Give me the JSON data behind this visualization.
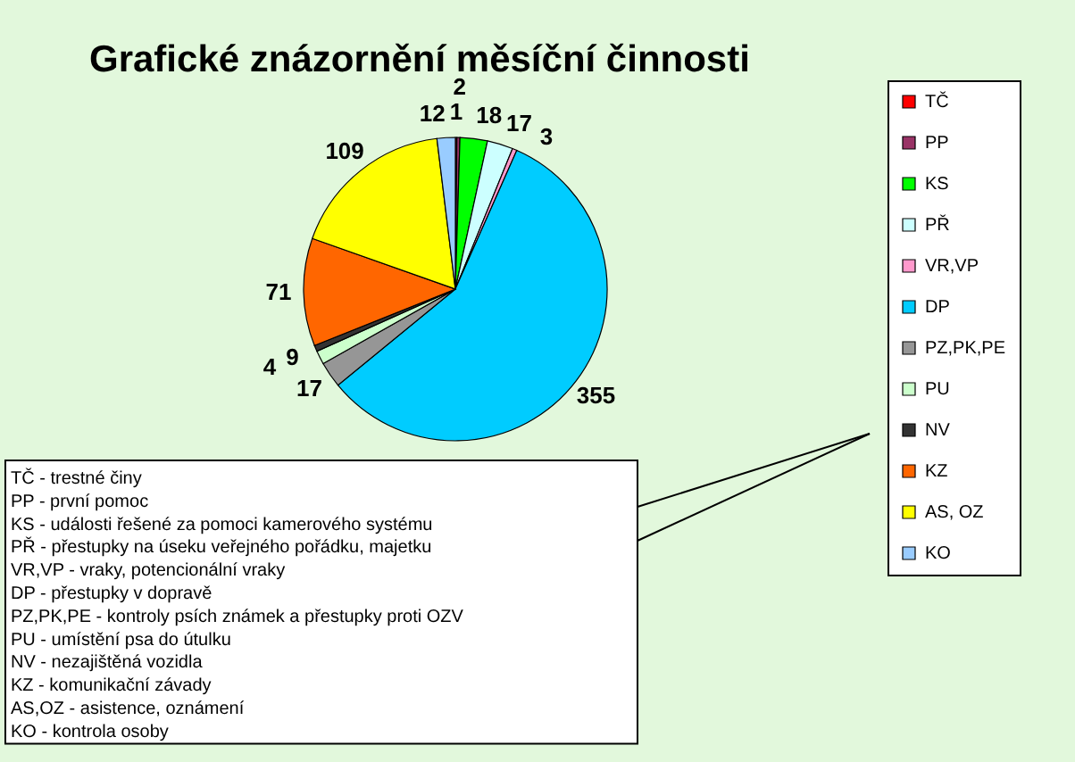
{
  "chart_data": {
    "type": "pie",
    "title": "Grafické znázornění měsíční činnosti",
    "categories": [
      "TČ",
      "PP",
      "KS",
      "PŘ",
      "VR,VP",
      "DP",
      "PZ,PK,PE",
      "PU",
      "NV",
      "KZ",
      "AS, OZ",
      "KO"
    ],
    "values": [
      1,
      2,
      18,
      17,
      3,
      355,
      17,
      9,
      4,
      71,
      109,
      12
    ],
    "colors": [
      "#ff0000",
      "#993366",
      "#00ff00",
      "#ccffff",
      "#ff99cc",
      "#00ccff",
      "#969696",
      "#ccffcc",
      "#333333",
      "#ff6600",
      "#ffff00",
      "#99ccff"
    ],
    "data_labels": true,
    "legend": "right",
    "annotations": [
      "TČ - trestné činy",
      "PP - první pomoc",
      "KS - události řešené za pomoci kamerového systému",
      "PŘ - přestupky na úseku veřejného pořádku, majetku",
      "VR,VP - vraky, potencionální vraky",
      "DP - přestupky v dopravě",
      "PZ,PK,PE - kontroly psích známek a přestupky proti OZV",
      "PU - umístění psa do útulku",
      "NV - nezajištěná vozidla",
      "KZ - komunikační závady",
      "AS,OZ - asistence, oznámení",
      "KO - kontrola osoby"
    ]
  }
}
